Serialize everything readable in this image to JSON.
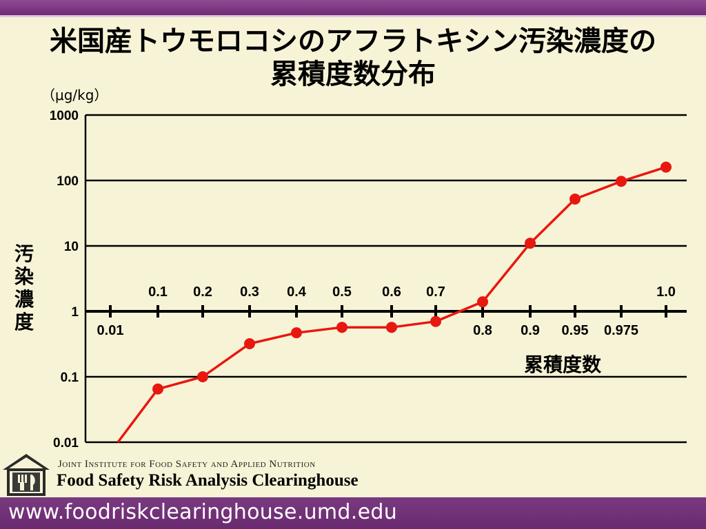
{
  "title_line1": "米国産トウモロコシのアフラトキシン汚染濃度の",
  "title_line2": "累積度数分布",
  "chart_data": {
    "type": "line",
    "title": "米国産トウモロコシのアフラトキシン汚染濃度の 累積度数分布",
    "ylabel": "汚染濃度",
    "xlabel": "累積度数",
    "unit": "（μg/kg）",
    "y_scale": "log",
    "ylim": [
      0.01,
      1000
    ],
    "y_ticks": [
      "1000",
      "100",
      "10",
      "1",
      "0.1",
      "0.01"
    ],
    "x_ticks": [
      "0.01",
      "0.1",
      "0.2",
      "0.3",
      "0.4",
      "0.5",
      "0.6",
      "0.7",
      "0.8",
      "0.9",
      "0.95",
      "0.975",
      "1.0"
    ],
    "x_tick_labels_above": [
      "0.1",
      "0.2",
      "0.3",
      "0.4",
      "0.5",
      "0.6",
      "0.7",
      "1.0"
    ],
    "x_tick_labels_below": [
      "0.01",
      "0.8",
      "0.9",
      "0.95",
      "0.975"
    ],
    "grid": true,
    "line_color": "#e8170f",
    "series": [
      {
        "points": [
          {
            "x": "0.01",
            "y": 0.007,
            "marker": false
          },
          {
            "x": "0.1",
            "y": 0.065
          },
          {
            "x": "0.2",
            "y": 0.1
          },
          {
            "x": "0.3",
            "y": 0.32
          },
          {
            "x": "0.4",
            "y": 0.47
          },
          {
            "x": "0.5",
            "y": 0.57
          },
          {
            "x": "0.6",
            "y": 0.57
          },
          {
            "x": "0.7",
            "y": 0.7
          },
          {
            "x": "0.8",
            "y": 1.4
          },
          {
            "x": "0.9",
            "y": 11
          },
          {
            "x": "0.95",
            "y": 52
          },
          {
            "x": "0.975",
            "y": 97
          },
          {
            "x": "1.0",
            "y": 160
          }
        ]
      }
    ]
  },
  "footer": {
    "org_line1": "Joint Institute for Food Safety and Applied Nutrition",
    "org_line2": "Food Safety Risk Analysis Clearinghouse",
    "url": "www.foodriskclearinghouse.umd.edu",
    "logo_icon": "house-fork-knife-logo-icon"
  },
  "colors": {
    "background": "#f7f3d6",
    "accent": "#6e2c74",
    "line": "#e8170f"
  }
}
